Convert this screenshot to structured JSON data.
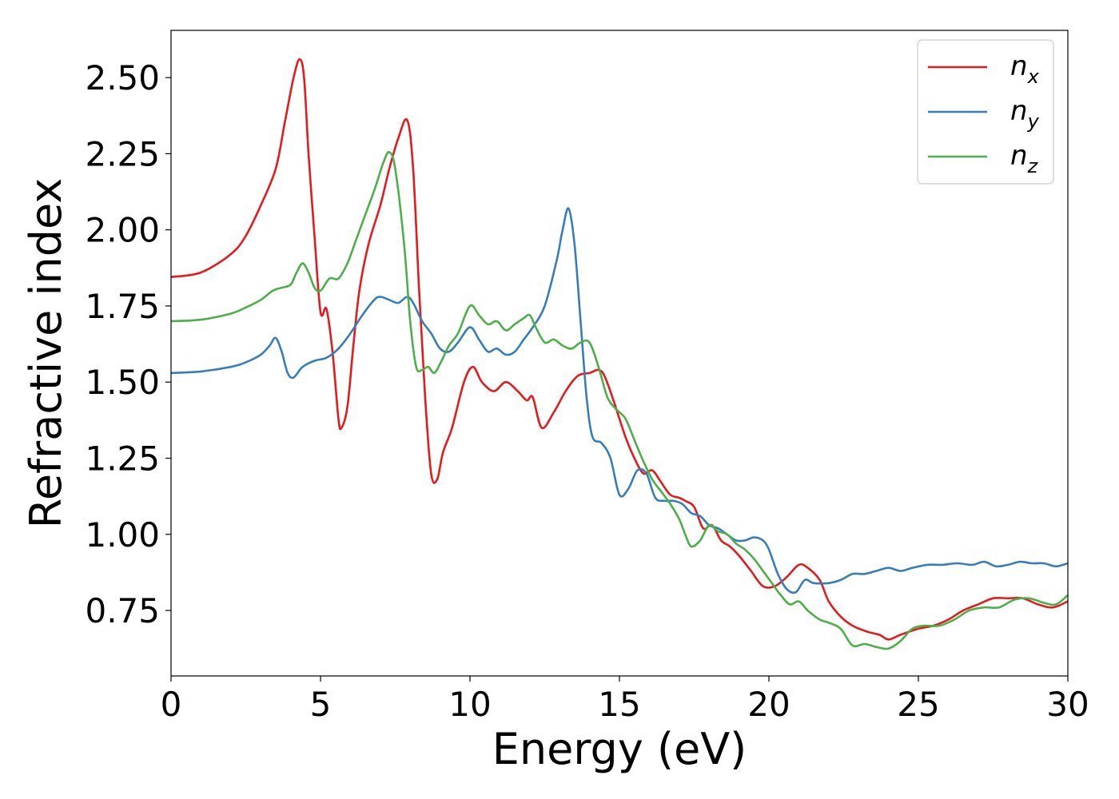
{
  "chart_data": {
    "type": "line",
    "xlabel": "Energy (eV)",
    "ylabel": "Refractive index",
    "xlim": [
      0,
      30
    ],
    "ylim": [
      0.535,
      2.655
    ],
    "xticks": [
      0,
      5,
      10,
      15,
      20,
      25,
      30
    ],
    "xtick_labels": [
      "0",
      "5",
      "10",
      "15",
      "20",
      "25",
      "30"
    ],
    "yticks": [
      0.75,
      1.0,
      1.25,
      1.5,
      1.75,
      2.0,
      2.25,
      2.5
    ],
    "ytick_labels": [
      "0.75",
      "1.00",
      "1.25",
      "1.50",
      "1.75",
      "2.00",
      "2.25",
      "2.50"
    ],
    "grid": false,
    "legend_position": "top-right",
    "series": [
      {
        "name": "n",
        "subscript": "x",
        "color": "#e41a1c",
        "x": [
          0,
          1,
          2,
          2.5,
          3,
          3.5,
          3.8,
          4.1,
          4.3,
          4.45,
          4.6,
          4.8,
          5.0,
          5.2,
          5.4,
          5.6,
          5.7,
          5.9,
          6.1,
          6.3,
          6.6,
          7.0,
          7.3,
          7.6,
          7.9,
          8.1,
          8.3,
          8.5,
          8.7,
          8.9,
          9.1,
          9.4,
          9.8,
          10.1,
          10.4,
          10.8,
          11.2,
          11.6,
          11.9,
          12.1,
          12.4,
          12.8,
          13.2,
          13.6,
          14.0,
          14.3,
          14.5,
          14.8,
          15.2,
          15.5,
          15.8,
          16.1,
          16.4,
          16.7,
          17.0,
          17.2,
          17.5,
          17.8,
          18.1,
          18.4,
          18.7,
          19.0,
          19.4,
          19.8,
          20.2,
          20.6,
          21.0,
          21.3,
          21.7,
          22.0,
          22.4,
          22.8,
          23.3,
          23.7,
          24.0,
          24.4,
          25.0,
          25.5,
          26.0,
          26.5,
          27.0,
          27.5,
          28.0,
          28.5,
          29.0,
          29.5,
          30
        ],
        "y": [
          1.845,
          1.86,
          1.92,
          1.98,
          2.08,
          2.2,
          2.35,
          2.5,
          2.56,
          2.5,
          2.25,
          1.98,
          1.73,
          1.74,
          1.6,
          1.38,
          1.35,
          1.42,
          1.62,
          1.8,
          1.95,
          2.08,
          2.2,
          2.3,
          2.36,
          2.2,
          1.8,
          1.45,
          1.2,
          1.18,
          1.27,
          1.35,
          1.5,
          1.55,
          1.5,
          1.47,
          1.5,
          1.47,
          1.44,
          1.45,
          1.35,
          1.4,
          1.47,
          1.52,
          1.53,
          1.54,
          1.52,
          1.44,
          1.32,
          1.25,
          1.2,
          1.21,
          1.17,
          1.13,
          1.12,
          1.11,
          1.09,
          1.02,
          1.03,
          0.98,
          0.96,
          0.93,
          0.88,
          0.83,
          0.83,
          0.86,
          0.9,
          0.89,
          0.85,
          0.78,
          0.73,
          0.7,
          0.68,
          0.67,
          0.655,
          0.67,
          0.69,
          0.7,
          0.72,
          0.75,
          0.77,
          0.79,
          0.79,
          0.79,
          0.77,
          0.76,
          0.78
        ]
      },
      {
        "name": "n",
        "subscript": "y",
        "color": "#377eb8",
        "x": [
          0,
          1,
          2,
          2.5,
          3,
          3.3,
          3.5,
          3.7,
          3.9,
          4.1,
          4.4,
          4.8,
          5.2,
          5.6,
          6.0,
          6.4,
          6.8,
          7.0,
          7.3,
          7.6,
          7.9,
          8.1,
          8.4,
          8.7,
          9.0,
          9.3,
          9.6,
          10.0,
          10.3,
          10.6,
          10.9,
          11.2,
          11.5,
          11.8,
          12.1,
          12.5,
          12.9,
          13.1,
          13.3,
          13.5,
          13.7,
          13.9,
          14.1,
          14.4,
          14.7,
          15.0,
          15.3,
          15.6,
          15.9,
          16.2,
          16.5,
          16.8,
          17.1,
          17.4,
          17.7,
          18.0,
          18.3,
          18.6,
          18.9,
          19.2,
          19.5,
          19.8,
          20.0,
          20.3,
          20.6,
          20.9,
          21.2,
          21.5,
          22.0,
          22.4,
          22.8,
          23.2,
          23.6,
          24.0,
          24.4,
          24.8,
          25.3,
          25.8,
          26.3,
          26.8,
          27.2,
          27.6,
          28.0,
          28.4,
          28.8,
          29.2,
          29.6,
          30
        ],
        "y": [
          1.53,
          1.535,
          1.55,
          1.565,
          1.59,
          1.62,
          1.645,
          1.6,
          1.53,
          1.515,
          1.55,
          1.57,
          1.58,
          1.61,
          1.66,
          1.72,
          1.77,
          1.78,
          1.77,
          1.76,
          1.78,
          1.76,
          1.7,
          1.66,
          1.61,
          1.6,
          1.63,
          1.68,
          1.64,
          1.6,
          1.61,
          1.59,
          1.6,
          1.64,
          1.68,
          1.75,
          1.9,
          2.0,
          2.07,
          1.95,
          1.7,
          1.45,
          1.32,
          1.3,
          1.25,
          1.13,
          1.15,
          1.21,
          1.2,
          1.12,
          1.11,
          1.11,
          1.1,
          1.07,
          1.06,
          1.03,
          1.02,
          1.0,
          0.98,
          0.98,
          0.99,
          0.98,
          0.95,
          0.87,
          0.82,
          0.81,
          0.85,
          0.84,
          0.84,
          0.85,
          0.87,
          0.87,
          0.88,
          0.89,
          0.88,
          0.89,
          0.9,
          0.9,
          0.905,
          0.9,
          0.91,
          0.895,
          0.9,
          0.91,
          0.905,
          0.905,
          0.895,
          0.905
        ]
      },
      {
        "name": "n",
        "subscript": "z",
        "color": "#4daf4a",
        "x": [
          0,
          1,
          2,
          2.5,
          3,
          3.4,
          3.7,
          4.0,
          4.2,
          4.4,
          4.6,
          4.8,
          5.0,
          5.3,
          5.6,
          5.9,
          6.2,
          6.5,
          6.8,
          7.1,
          7.3,
          7.5,
          7.8,
          8.0,
          8.2,
          8.4,
          8.6,
          8.8,
          9.0,
          9.3,
          9.6,
          10.0,
          10.3,
          10.6,
          10.9,
          11.2,
          11.5,
          11.8,
          12.0,
          12.2,
          12.5,
          12.8,
          13.1,
          13.4,
          13.7,
          14.0,
          14.3,
          14.6,
          14.9,
          15.2,
          15.5,
          15.8,
          16.1,
          16.4,
          16.7,
          17.0,
          17.2,
          17.4,
          17.7,
          18.0,
          18.3,
          18.6,
          18.9,
          19.2,
          19.5,
          19.8,
          20.1,
          20.4,
          20.7,
          21.0,
          21.3,
          21.7,
          22.0,
          22.4,
          22.8,
          23.2,
          23.6,
          24.0,
          24.4,
          24.8,
          25.2,
          25.7,
          26.2,
          26.7,
          27.2,
          27.7,
          28.2,
          28.7,
          29.2,
          29.6,
          30
        ],
        "y": [
          1.7,
          1.705,
          1.725,
          1.745,
          1.77,
          1.8,
          1.81,
          1.82,
          1.86,
          1.89,
          1.86,
          1.81,
          1.8,
          1.84,
          1.84,
          1.89,
          1.97,
          2.05,
          2.13,
          2.22,
          2.255,
          2.2,
          1.95,
          1.7,
          1.55,
          1.54,
          1.55,
          1.53,
          1.56,
          1.62,
          1.66,
          1.75,
          1.72,
          1.69,
          1.7,
          1.67,
          1.69,
          1.71,
          1.72,
          1.68,
          1.63,
          1.64,
          1.62,
          1.61,
          1.63,
          1.63,
          1.55,
          1.45,
          1.41,
          1.38,
          1.31,
          1.24,
          1.18,
          1.14,
          1.1,
          1.05,
          1.0,
          0.96,
          0.98,
          1.03,
          1.01,
          1.0,
          0.97,
          0.95,
          0.92,
          0.88,
          0.84,
          0.8,
          0.77,
          0.78,
          0.75,
          0.72,
          0.71,
          0.69,
          0.635,
          0.64,
          0.63,
          0.625,
          0.65,
          0.69,
          0.7,
          0.7,
          0.72,
          0.75,
          0.76,
          0.76,
          0.785,
          0.79,
          0.775,
          0.77,
          0.8
        ]
      }
    ]
  }
}
